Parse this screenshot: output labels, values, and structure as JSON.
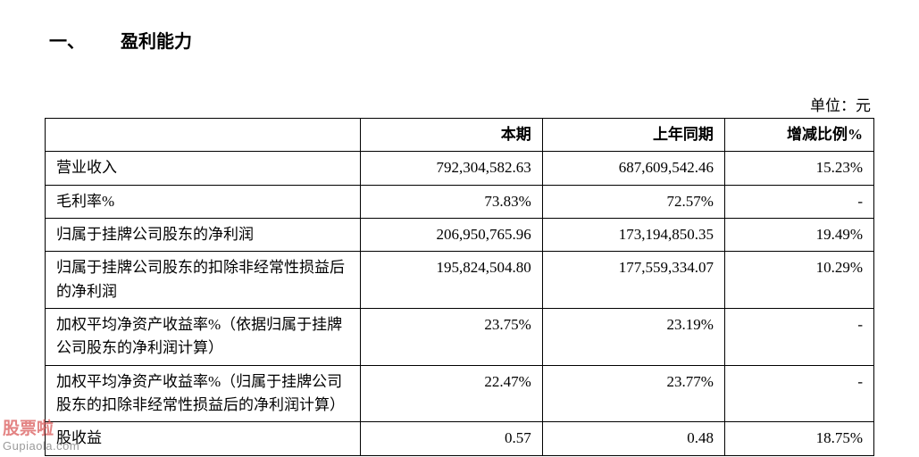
{
  "heading": {
    "prefix": "一、",
    "title": "盈利能力"
  },
  "unit_label": "单位：元",
  "table": {
    "type": "table",
    "background_color": "#ffffff",
    "border_color": "#000000",
    "text_color": "#000000",
    "header_fontsize": 17,
    "cell_fontsize": 17,
    "columns": [
      {
        "key": "label",
        "header": "",
        "width_pct": 38,
        "align": "left"
      },
      {
        "key": "current",
        "header": "本期",
        "width_pct": 22,
        "align": "right"
      },
      {
        "key": "prior",
        "header": "上年同期",
        "width_pct": 22,
        "align": "right"
      },
      {
        "key": "change",
        "header": "增减比例%",
        "width_pct": 18,
        "align": "right"
      }
    ],
    "rows": [
      {
        "label": "营业收入",
        "current": "792,304,582.63",
        "prior": "687,609,542.46",
        "change": "15.23%"
      },
      {
        "label": "毛利率%",
        "current": "73.83%",
        "prior": "72.57%",
        "change": "-"
      },
      {
        "label": "归属于挂牌公司股东的净利润",
        "current": "206,950,765.96",
        "prior": "173,194,850.35",
        "change": "19.49%"
      },
      {
        "label": "归属于挂牌公司股东的扣除非经常性损益后的净利润",
        "current": "195,824,504.80",
        "prior": "177,559,334.07",
        "change": "10.29%"
      },
      {
        "label": "加权平均净资产收益率%（依据归属于挂牌公司股东的净利润计算）",
        "current": "23.75%",
        "prior": "23.19%",
        "change": "-"
      },
      {
        "label": "加权平均净资产收益率%（归属于挂牌公司股东的扣除非经常性损益后的净利润计算）",
        "current": "22.47%",
        "prior": "23.77%",
        "change": "-"
      },
      {
        "label": "股收益",
        "current": "0.57",
        "prior": "0.48",
        "change": "18.75%"
      }
    ]
  },
  "watermark": {
    "line1": "股票啦",
    "line2": "Gupiaola.com",
    "color1": "#DA5A5A",
    "color2": "#7A7A7A"
  }
}
